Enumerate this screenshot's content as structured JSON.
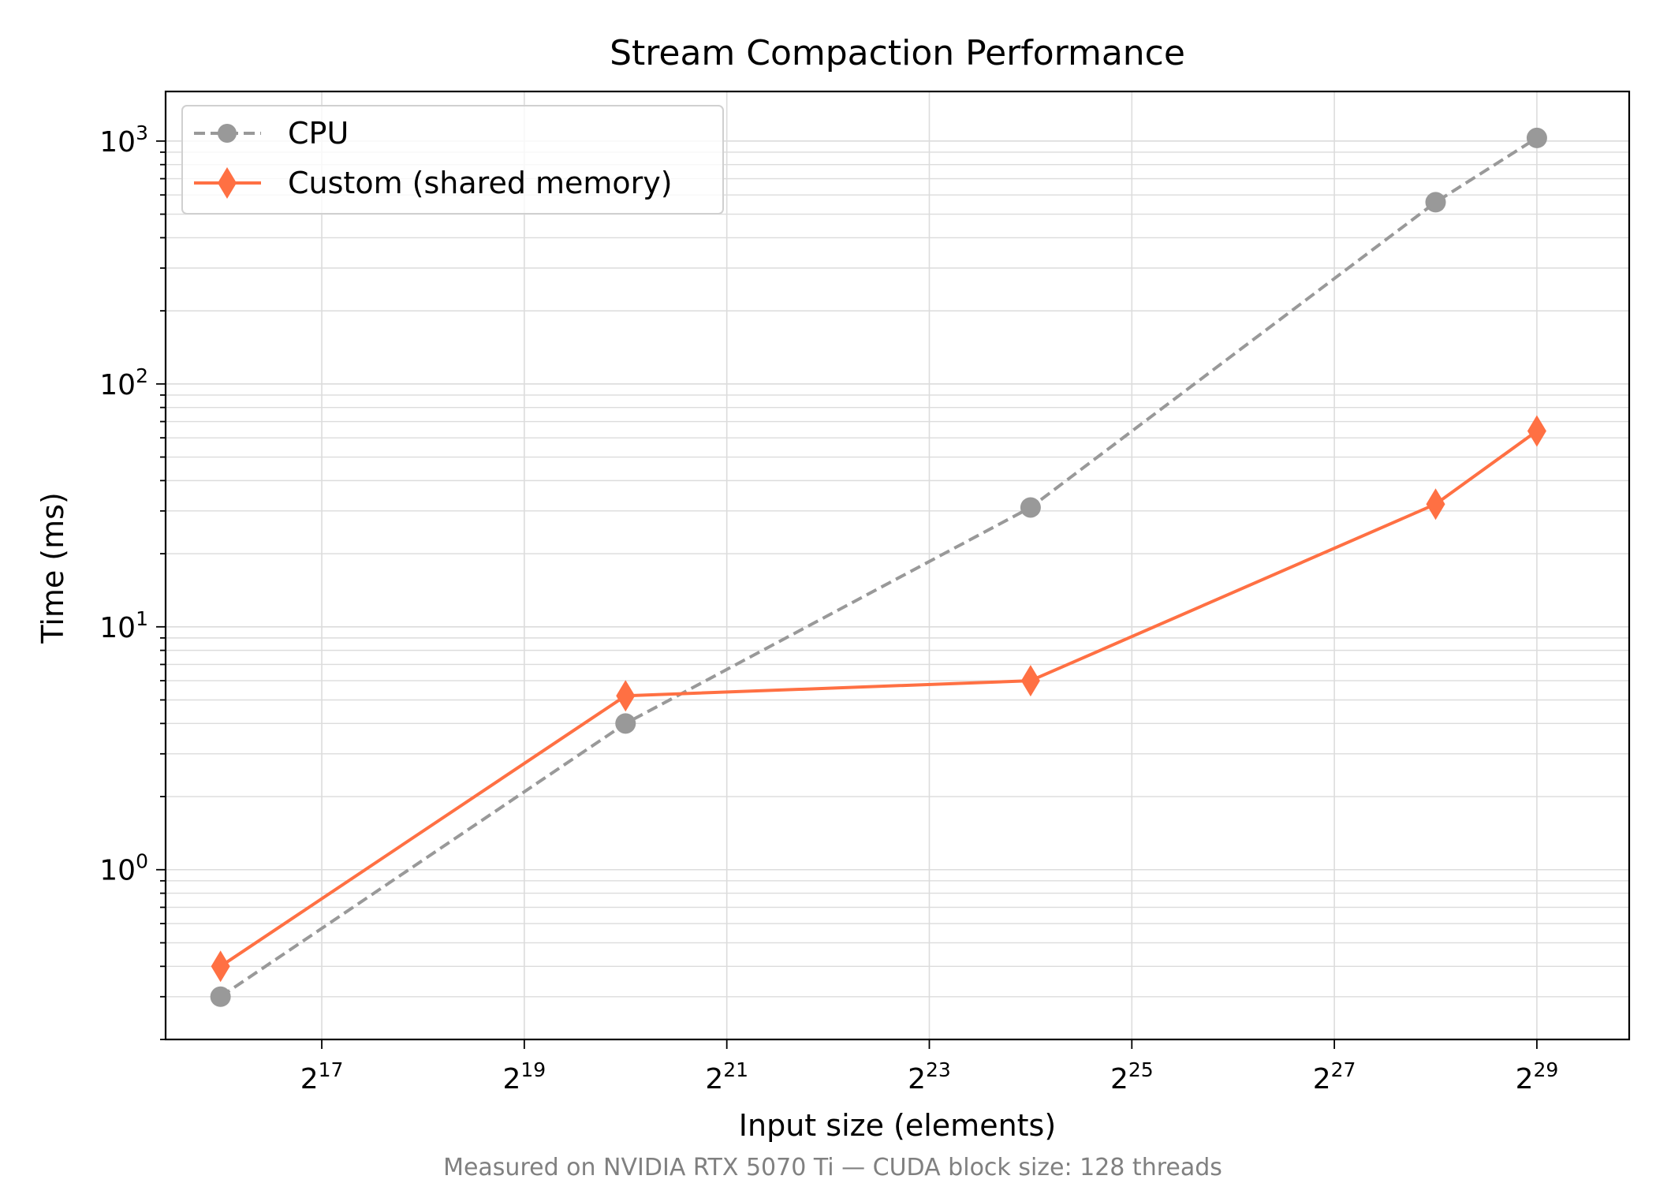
{
  "chart_data": {
    "type": "line",
    "title": "Stream Compaction Performance",
    "xlabel": "Input size (elements)",
    "ylabel": "Time (ms)",
    "footer": "Measured on NVIDIA RTX 5070 Ti — CUDA block size: 128 threads",
    "x_scale": "log2",
    "y_scale": "log10",
    "x_tick_labels": [
      {
        "base": "2",
        "exp": "17",
        "value": 131072
      },
      {
        "base": "2",
        "exp": "19",
        "value": 524288
      },
      {
        "base": "2",
        "exp": "21",
        "value": 2097152
      },
      {
        "base": "2",
        "exp": "23",
        "value": 8388608
      },
      {
        "base": "2",
        "exp": "25",
        "value": 33554432
      },
      {
        "base": "2",
        "exp": "27",
        "value": 134217728
      },
      {
        "base": "2",
        "exp": "29",
        "value": 536870912
      }
    ],
    "y_tick_labels": [
      {
        "base": "10",
        "exp": "0",
        "value": 1
      },
      {
        "base": "10",
        "exp": "1",
        "value": 10
      },
      {
        "base": "10",
        "exp": "2",
        "value": 100
      },
      {
        "base": "10",
        "exp": "3",
        "value": 1000
      }
    ],
    "xlim": [
      45000,
      1010000000
    ],
    "ylim": [
      0.2,
      1600
    ],
    "grid": true,
    "legend_position": "top-left",
    "series": [
      {
        "name": "CPU",
        "color": "#999999",
        "line_style": "dashed",
        "marker": "circle",
        "x": [
          65536,
          1048576,
          16777216,
          268435456,
          536870912
        ],
        "y": [
          0.3,
          4.0,
          31,
          560,
          1030
        ]
      },
      {
        "name": "Custom (shared memory)",
        "color": "#ff7043",
        "line_style": "solid",
        "marker": "diamond",
        "x": [
          65536,
          1048576,
          16777216,
          268435456,
          536870912
        ],
        "y": [
          0.4,
          5.2,
          6.0,
          32,
          64
        ]
      }
    ]
  }
}
